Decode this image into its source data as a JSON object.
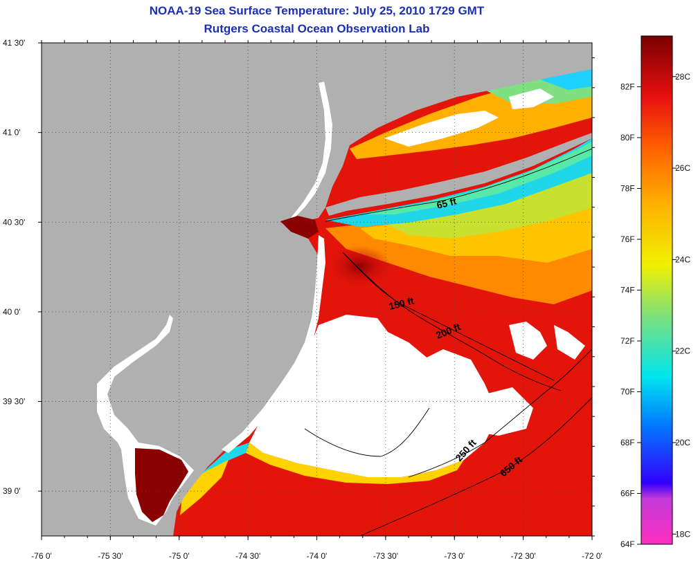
{
  "title": {
    "line1": "NOAA-19 Sea Surface Temperature:  July 25, 2010 1729 GMT",
    "line2": "Rutgers Coastal Ocean Observation Lab"
  },
  "map": {
    "lon_range": [
      -76,
      -72
    ],
    "lat_range": [
      38.75,
      41.5
    ],
    "lat_ticks": [
      {
        "value": 41.5,
        "label": "41 30'"
      },
      {
        "value": 41.0,
        "label": "41 0'"
      },
      {
        "value": 40.5,
        "label": "40 30'"
      },
      {
        "value": 40.0,
        "label": "40 0'"
      },
      {
        "value": 39.5,
        "label": "39 30'"
      },
      {
        "value": 39.0,
        "label": "39 0'"
      }
    ],
    "lon_ticks": [
      {
        "value": -76.0,
        "label": "-76 0'"
      },
      {
        "value": -75.5,
        "label": "-75 30'"
      },
      {
        "value": -75.0,
        "label": "-75 0'"
      },
      {
        "value": -74.5,
        "label": "-74 30'"
      },
      {
        "value": -74.0,
        "label": "-74 0'"
      },
      {
        "value": -73.5,
        "label": "-73 30'"
      },
      {
        "value": -73.0,
        "label": "-73 0'"
      },
      {
        "value": -72.5,
        "label": "-72 30'"
      },
      {
        "value": -72.0,
        "label": "-72 0'"
      }
    ],
    "depth_labels": [
      "65 ft",
      "150 ft",
      "200 ft",
      "250 ft",
      "650 ft"
    ],
    "colors": {
      "land": "#b0b0b0",
      "cloud": "#ffffff",
      "warm_water": "#e3140a",
      "hot_water": "#8b0000",
      "cool_water": "#1fd7e8"
    }
  },
  "colorbar": {
    "fahrenheit": [
      {
        "value": 64,
        "label": "64F"
      },
      {
        "value": 66,
        "label": "66F"
      },
      {
        "value": 68,
        "label": "68F"
      },
      {
        "value": 70,
        "label": "70F"
      },
      {
        "value": 72,
        "label": "72F"
      },
      {
        "value": 74,
        "label": "74F"
      },
      {
        "value": 76,
        "label": "76F"
      },
      {
        "value": 78,
        "label": "78F"
      },
      {
        "value": 80,
        "label": "80F"
      },
      {
        "value": 82,
        "label": "82F"
      }
    ],
    "celsius": [
      {
        "value": 18,
        "label": "18C"
      },
      {
        "value": 20,
        "label": "20C"
      },
      {
        "value": 22,
        "label": "22C"
      },
      {
        "value": 24,
        "label": "24C"
      },
      {
        "value": 26,
        "label": "26C"
      },
      {
        "value": 28,
        "label": "28C"
      }
    ]
  }
}
